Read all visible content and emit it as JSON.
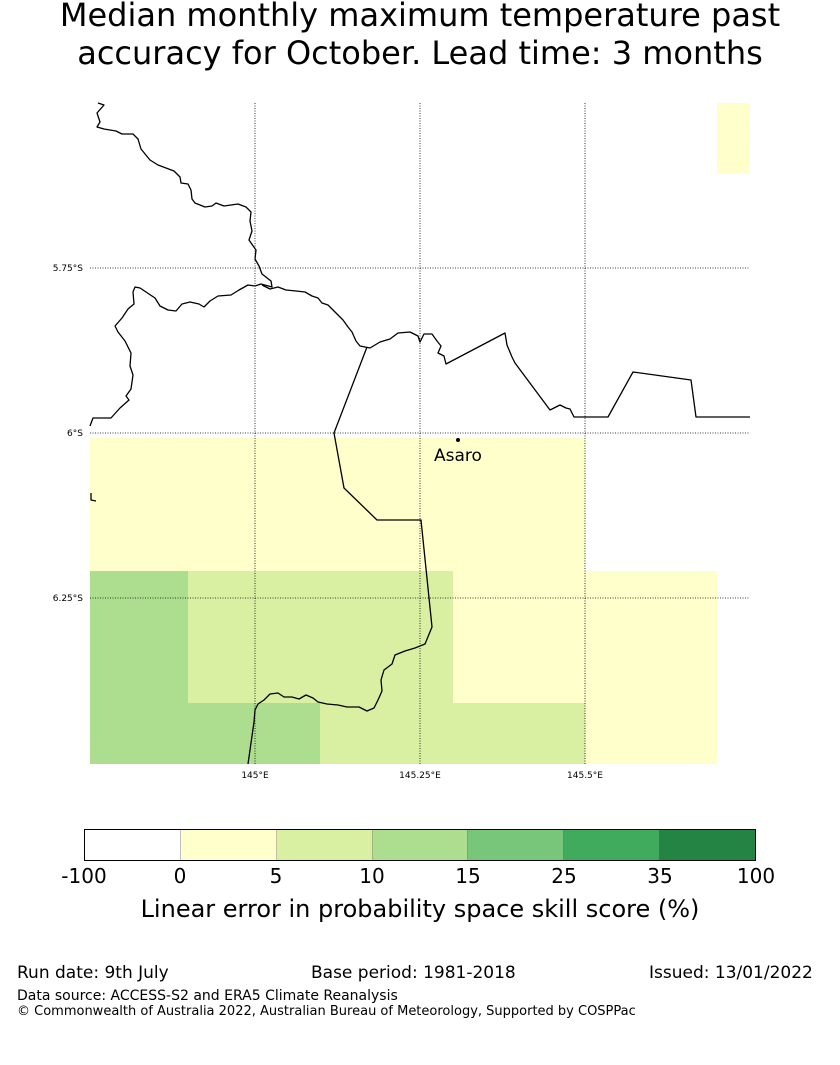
{
  "title_line1": "Median monthly maximum temperature past",
  "title_line2": "accuracy for October. Lead time: 3 months",
  "map": {
    "lat_labels": [
      "5.75°S",
      "6°S",
      "6.25°S"
    ],
    "lon_labels": [
      "145°E",
      "145.25°E",
      "145.5°E"
    ],
    "place_label": "Asaro",
    "colors": {
      "yellow": "#ffffcc",
      "light_green": "#d9f0a3",
      "mid_green": "#addd8e"
    }
  },
  "colorbar": {
    "colors": [
      "#ffffff",
      "#ffffcc",
      "#d9f0a3",
      "#addd8e",
      "#78c679",
      "#41ab5d",
      "#238443"
    ],
    "ticks": [
      "-100",
      "0",
      "5",
      "10",
      "15",
      "25",
      "35",
      "100"
    ],
    "label": "Linear error in probability space skill score (%)"
  },
  "footer": {
    "run_date": "Run date: 9th July",
    "base_period": "Base period: 1981-2018",
    "issued": "Issued: 13/01/2022",
    "data_source": "Data source: ACCESS-S2 and ERA5 Climate Reanalysis",
    "copyright": "© Commonwealth of Australia 2022, Australian Bureau of Meteorology, Supported by COSPPac"
  }
}
